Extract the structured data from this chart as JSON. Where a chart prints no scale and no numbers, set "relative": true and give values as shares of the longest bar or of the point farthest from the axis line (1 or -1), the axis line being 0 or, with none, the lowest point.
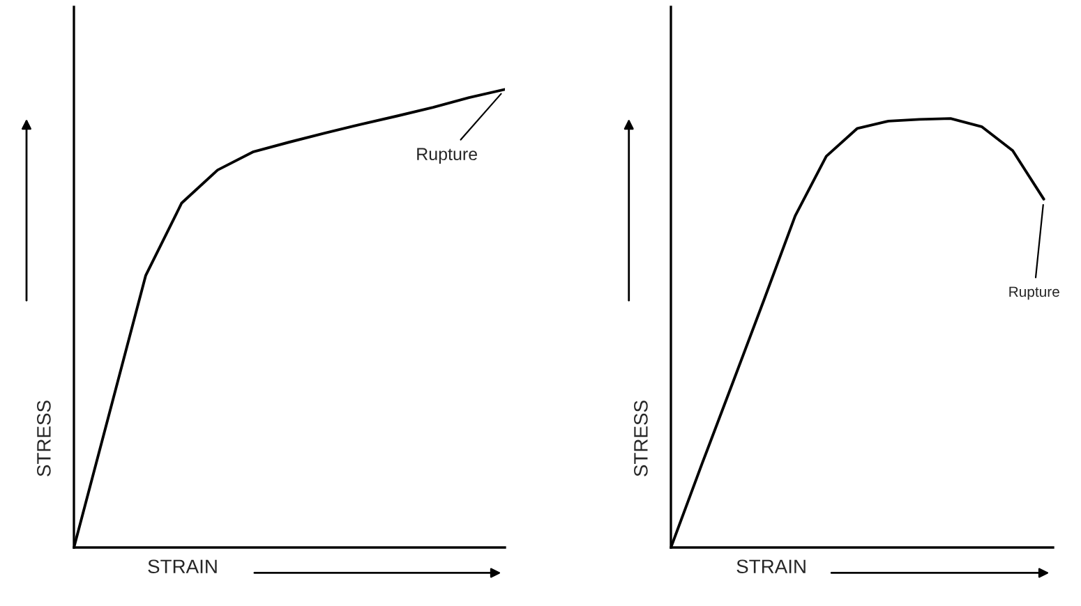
{
  "chart_data": [
    {
      "type": "line",
      "relative": true,
      "xlabel": "STRAIN",
      "ylabel": "STRESS",
      "categories": [
        null,
        null,
        null,
        null,
        null,
        null,
        null,
        null,
        null,
        null,
        null,
        null,
        null
      ],
      "series": [
        {
          "color": "#000000",
          "values": [
            0,
            0.297,
            0.594,
            0.752,
            0.824,
            0.864,
            0.885,
            0.905,
            0.924,
            0.942,
            0.961,
            0.982,
            1.0
          ]
        }
      ],
      "annotations": [
        "Rupture"
      ],
      "marker": "none",
      "line_style": "solid"
    },
    {
      "type": "line",
      "relative": true,
      "xlabel": "STRAIN",
      "ylabel": "STRESS",
      "categories": [
        null,
        null,
        null,
        null,
        null,
        null,
        null,
        null,
        null,
        null,
        null,
        null,
        null
      ],
      "series": [
        {
          "color": "#000000",
          "values": [
            0,
            0.195,
            0.386,
            0.578,
            0.773,
            0.912,
            0.977,
            0.994,
            0.998,
            1.0,
            0.981,
            0.925,
            0.812
          ]
        }
      ],
      "annotations": [
        "Rupture"
      ],
      "marker": "none",
      "line_style": "solid"
    }
  ]
}
